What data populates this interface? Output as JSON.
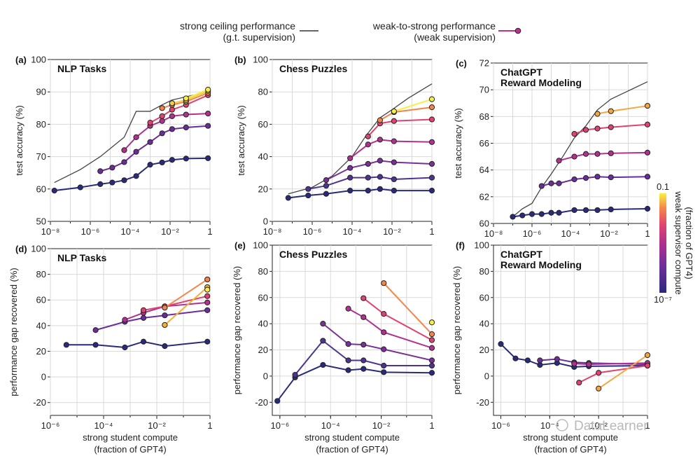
{
  "legend": {
    "ceiling": {
      "line1": "strong ceiling performance",
      "line2": "(g.t. supervision)"
    },
    "weak": {
      "line1": "weak-to-strong performance",
      "line2": "(weak supervision)"
    }
  },
  "colorbar": {
    "title_line1": "weak supervisor compute",
    "title_line2": "(fraction of GPT4)",
    "top_label": "0.1",
    "bottom_label": "10⁻⁷",
    "colors": [
      "#2a2a7c",
      "#6a2d9a",
      "#b0318f",
      "#e0436f",
      "#f4854a",
      "#f8f040"
    ]
  },
  "watermark": "DataLearner",
  "chart_data": [
    {
      "id": "a",
      "type": "line",
      "panel_label": "(a)",
      "title": [
        "NLP Tasks"
      ],
      "xlabel": [],
      "ylabel": "test accuracy (%)",
      "xlim": [
        -8,
        0
      ],
      "xtick_exps": [
        -8,
        -6,
        -4,
        -2,
        0
      ],
      "xtick_labels": [
        "10⁻⁸",
        "10⁻⁶",
        "10⁻⁴",
        "10⁻²",
        "1"
      ],
      "ylim": [
        50,
        100
      ],
      "yticks": [
        50,
        60,
        70,
        80,
        90,
        100
      ],
      "ceiling": {
        "x": [
          -7.8,
          -6.5,
          -5.5,
          -4.9,
          -4.3,
          -3.7,
          -3.0,
          -2.4,
          -1.9,
          -1.2,
          -0.1
        ],
        "y": [
          62,
          66,
          70,
          73,
          76,
          84,
          84,
          86,
          87.5,
          88.5,
          90
        ]
      },
      "series": [
        {
          "x": [
            -7.8,
            -6.5,
            -5.5,
            -4.9,
            -4.3,
            -3.7,
            -3.0,
            -2.4,
            -1.9,
            -1.2,
            -0.1
          ],
          "y": [
            59.5,
            60.5,
            61.5,
            62,
            62.7,
            64,
            67.5,
            68.2,
            69,
            69.4,
            69.5
          ],
          "color": "#2a2a7c"
        },
        {
          "x": [
            -5.5,
            -4.9,
            -4.3,
            -3.7,
            -3.0,
            -2.4,
            -1.9,
            -1.2,
            -0.1
          ],
          "y": [
            65.5,
            66.6,
            68.3,
            71.5,
            74.5,
            77.2,
            78.5,
            79,
            79.5
          ],
          "color": "#6a2d9a"
        },
        {
          "x": [
            -4.3,
            -3.7,
            -3.0,
            -2.4,
            -1.9,
            -1.2,
            -0.1
          ],
          "y": [
            72,
            76,
            79.5,
            81,
            82.5,
            83,
            83.3
          ],
          "color": "#b0318f"
        },
        {
          "x": [
            -3.0,
            -2.4,
            -1.9,
            -1.2,
            -0.1
          ],
          "y": [
            80.5,
            82.5,
            84.5,
            86,
            89
          ],
          "color": "#e0436f"
        },
        {
          "x": [
            -2.4,
            -1.9,
            -1.2,
            -0.1
          ],
          "y": [
            85,
            86,
            87,
            89.7
          ],
          "color": "#f4854a"
        },
        {
          "x": [
            -1.9,
            -1.2,
            -0.1
          ],
          "y": [
            86.5,
            87.5,
            90.3
          ],
          "color": "#f4cf44"
        },
        {
          "x": [
            -1.2,
            -0.1
          ],
          "y": [
            88,
            90.7
          ],
          "color": "#f8f040"
        }
      ]
    },
    {
      "id": "b",
      "type": "line",
      "panel_label": "(b)",
      "title": [
        "Chess Puzzles"
      ],
      "xlabel": [],
      "ylabel": "test accuracy (%)",
      "xlim": [
        -8,
        0
      ],
      "xtick_exps": [
        -8,
        -6,
        -4,
        -2,
        0
      ],
      "xtick_labels": [
        "10⁻⁸",
        "10⁻⁶",
        "10⁻⁴",
        "10⁻²",
        "1"
      ],
      "ylim": [
        0,
        100
      ],
      "yticks": [
        0,
        20,
        40,
        60,
        80,
        100
      ],
      "ceiling": {
        "x": [
          -7.2,
          -6,
          -5,
          -4,
          -3.3,
          -2.6,
          -2.0,
          -1.2,
          0
        ],
        "y": [
          17,
          21,
          28,
          40,
          53,
          64,
          69,
          76,
          85
        ]
      },
      "series": [
        {
          "x": [
            -7.2,
            -6.2,
            -5.3,
            -4.1,
            -3.2,
            -2.6,
            -1.9,
            0
          ],
          "y": [
            14.5,
            16,
            17,
            19,
            19,
            20,
            19,
            19
          ],
          "color": "#2a2a7c"
        },
        {
          "x": [
            -6.2,
            -5.3,
            -4.1,
            -3.2,
            -2.6,
            -1.9,
            0
          ],
          "y": [
            20,
            22,
            27,
            27,
            27.5,
            26,
            27
          ],
          "color": "#4f3390"
        },
        {
          "x": [
            -5.3,
            -4.1,
            -3.2,
            -2.6,
            -1.9,
            0
          ],
          "y": [
            25.5,
            33,
            35.5,
            37.5,
            36.5,
            35.5
          ],
          "color": "#7a3096"
        },
        {
          "x": [
            -4.1,
            -3.2,
            -2.6,
            -1.9,
            0
          ],
          "y": [
            39,
            47.5,
            50.5,
            49.5,
            49
          ],
          "color": "#b0318f"
        },
        {
          "x": [
            -3.2,
            -2.6,
            -1.9,
            0
          ],
          "y": [
            52.5,
            60.5,
            62,
            63
          ],
          "color": "#e0436f"
        },
        {
          "x": [
            -2.6,
            -1.9,
            0
          ],
          "y": [
            62.5,
            67.5,
            70.5
          ],
          "color": "#f4854a"
        },
        {
          "x": [
            -1.9,
            0
          ],
          "y": [
            68,
            75.5
          ],
          "color": "#f8f040"
        }
      ]
    },
    {
      "id": "c",
      "type": "line",
      "panel_label": "(c)",
      "title": [
        "ChatGPT",
        "Reward Modeling"
      ],
      "xlabel": [],
      "ylabel": "test accuracy (%)",
      "xlim": [
        -8,
        0
      ],
      "xtick_exps": [
        -8,
        -6,
        -4,
        -2,
        0
      ],
      "xtick_labels": [
        "10⁻⁸",
        "10⁻⁶",
        "10⁻⁴",
        "10⁻²",
        "1"
      ],
      "ylim": [
        60,
        72
      ],
      "yticks": [
        60,
        62,
        64,
        66,
        68,
        70,
        72
      ],
      "ceiling": {
        "x": [
          -7.0,
          -6.5,
          -6.0,
          -5.5,
          -5.0,
          -4.4,
          -3.8,
          -3.2,
          -2.6,
          -1.9,
          0
        ],
        "y": [
          60.5,
          61.1,
          61.5,
          62.7,
          63.7,
          65,
          66.4,
          67.3,
          68.5,
          69.3,
          70.6
        ]
      },
      "series": [
        {
          "x": [
            -7.0,
            -6.5,
            -6.0,
            -5.5,
            -5.0,
            -4.6,
            -3.8,
            -3.2,
            -2.6,
            -1.9,
            0
          ],
          "y": [
            60.5,
            60.6,
            60.7,
            60.7,
            60.8,
            60.8,
            61.0,
            61.0,
            61.0,
            61.05,
            61.1
          ],
          "color": "#2a2a7c"
        },
        {
          "x": [
            -5.5,
            -5.0,
            -4.6,
            -3.8,
            -3.2,
            -2.6,
            -1.9,
            0
          ],
          "y": [
            62.8,
            63.0,
            63.0,
            63.3,
            63.4,
            63.5,
            63.45,
            63.5
          ],
          "color": "#6a2d9a"
        },
        {
          "x": [
            -4.6,
            -3.8,
            -3.2,
            -2.6,
            -1.9,
            0
          ],
          "y": [
            64.7,
            65.0,
            65.2,
            65.2,
            65.25,
            65.3
          ],
          "color": "#b0318f"
        },
        {
          "x": [
            -3.8,
            -3.2,
            -2.6,
            -1.9,
            0
          ],
          "y": [
            66.7,
            67.0,
            67.1,
            67.2,
            67.4
          ],
          "color": "#e0436f"
        },
        {
          "x": [
            -2.6,
            -1.9,
            0
          ],
          "y": [
            68.2,
            68.4,
            68.8
          ],
          "color": "#f6a640"
        }
      ]
    },
    {
      "id": "d",
      "type": "line",
      "panel_label": "(d)",
      "title": [
        "NLP Tasks"
      ],
      "xlabel": [],
      "ylabel": "performance gap recovered (%)",
      "xlim": [
        -6,
        0
      ],
      "xtick_exps": [
        -6,
        -4,
        -2,
        0
      ],
      "xtick_labels": [
        "10⁻⁶",
        "10⁻⁴",
        "10⁻²",
        "1"
      ],
      "ylim": [
        -30,
        100
      ],
      "yticks": [
        -20,
        0,
        20,
        40,
        60,
        80,
        100
      ],
      "ceiling": null,
      "series": [
        {
          "x": [
            -5.4,
            -4.3,
            -3.2,
            -2.5,
            -1.7,
            -0.1
          ],
          "y": [
            25,
            25,
            23,
            27.5,
            24,
            27.5
          ],
          "color": "#2a2a7c"
        },
        {
          "x": [
            -4.3,
            -3.2,
            -2.5,
            -1.7,
            -0.1
          ],
          "y": [
            36.5,
            43,
            46,
            48,
            52
          ],
          "color": "#6a2d9a"
        },
        {
          "x": [
            -3.2,
            -2.5,
            -1.7,
            -0.1
          ],
          "y": [
            44.5,
            50,
            55,
            58
          ],
          "color": "#b0318f"
        },
        {
          "x": [
            -2.5,
            -1.7,
            -0.1
          ],
          "y": [
            52,
            55,
            63
          ],
          "color": "#e0436f"
        },
        {
          "x": [
            -1.7,
            -0.1
          ],
          "y": [
            54,
            76
          ],
          "color": "#f4854a"
        },
        {
          "x": [
            -1.7,
            -0.1
          ],
          "y": [
            40.5,
            70
          ],
          "color": "#f8b030"
        },
        {
          "x": [
            -0.1
          ],
          "y": [
            68
          ],
          "color": "#f8f040"
        }
      ]
    },
    {
      "id": "e",
      "type": "line",
      "panel_label": "(e)",
      "title": [
        "Chess Puzzles"
      ],
      "xlabel": [],
      "ylabel": "performance gap recovered (%)",
      "xlim": [
        -6.3,
        0
      ],
      "xtick_exps": [
        -6,
        -4,
        -2,
        0
      ],
      "xtick_labels": [
        "10⁻⁶",
        "10⁻⁴",
        "10⁻²",
        "1"
      ],
      "ylim": [
        -30,
        100
      ],
      "yticks": [
        -20,
        0,
        20,
        40,
        60,
        80,
        100
      ],
      "ceiling": null,
      "series": [
        {
          "x": [
            -6.1,
            -5.4,
            -4.3,
            -3.3,
            -2.7,
            -1.9,
            0
          ],
          "y": [
            -19,
            -1,
            8.5,
            4.5,
            5.5,
            3,
            2.5
          ],
          "color": "#2a2a7c"
        },
        {
          "x": [
            -5.4,
            -4.3,
            -3.3,
            -2.7,
            -1.9,
            0
          ],
          "y": [
            1,
            27,
            12,
            12,
            8,
            8
          ],
          "color": "#4f3390"
        },
        {
          "x": [
            -4.3,
            -3.3,
            -2.7,
            -1.9,
            0
          ],
          "y": [
            40,
            24.5,
            24,
            20.5,
            12
          ],
          "color": "#7a3096"
        },
        {
          "x": [
            -3.3,
            -2.7,
            -1.9,
            0
          ],
          "y": [
            51.5,
            45,
            33.5,
            21.5
          ],
          "color": "#b0318f"
        },
        {
          "x": [
            -2.7,
            -1.9,
            0
          ],
          "y": [
            59.5,
            47.5,
            27.5
          ],
          "color": "#e0436f"
        },
        {
          "x": [
            -1.9,
            0
          ],
          "y": [
            71,
            32
          ],
          "color": "#f4854a"
        },
        {
          "x": [
            0
          ],
          "y": [
            41
          ],
          "color": "#f8f040"
        }
      ]
    },
    {
      "id": "f",
      "type": "line",
      "panel_label": "(f)",
      "title": [
        "ChatGPT",
        "Reward Modeling"
      ],
      "xlabel": [
        "strong student compute",
        "(fraction of GPT4)"
      ],
      "ylabel": "performance gap recovered (%)",
      "xlim": [
        -6.3,
        0
      ],
      "xtick_exps": [
        -6,
        -4,
        -2,
        0
      ],
      "xtick_labels": [
        "10⁻⁶",
        "10⁻⁴",
        "10⁻²",
        "1"
      ],
      "ylim": [
        -30,
        100
      ],
      "yticks": [
        -20,
        0,
        20,
        40,
        60,
        80,
        100
      ],
      "ceiling": null,
      "series": [
        {
          "x": [
            -6.0,
            -5.4,
            -4.9,
            -4.4,
            -3.7,
            -3.0,
            -2.4,
            0
          ],
          "y": [
            24.5,
            13.5,
            12,
            8.5,
            10,
            7,
            7.5,
            8
          ],
          "color": "#2a2a7c"
        },
        {
          "x": [
            -4.4,
            -3.7,
            -3.0,
            -2.4,
            0
          ],
          "y": [
            12,
            13,
            10.5,
            10,
            9
          ],
          "color": "#6a2d9a"
        },
        {
          "x": [
            -3.0,
            -2.4,
            0
          ],
          "y": [
            9.5,
            9,
            10
          ],
          "color": "#b0318f"
        },
        {
          "x": [
            -2.8,
            -2.0,
            0
          ],
          "y": [
            -5,
            2.5,
            8
          ],
          "color": "#e0436f"
        },
        {
          "x": [
            -2.0,
            0
          ],
          "y": [
            -9.5,
            16
          ],
          "color": "#f6a640"
        }
      ]
    }
  ]
}
